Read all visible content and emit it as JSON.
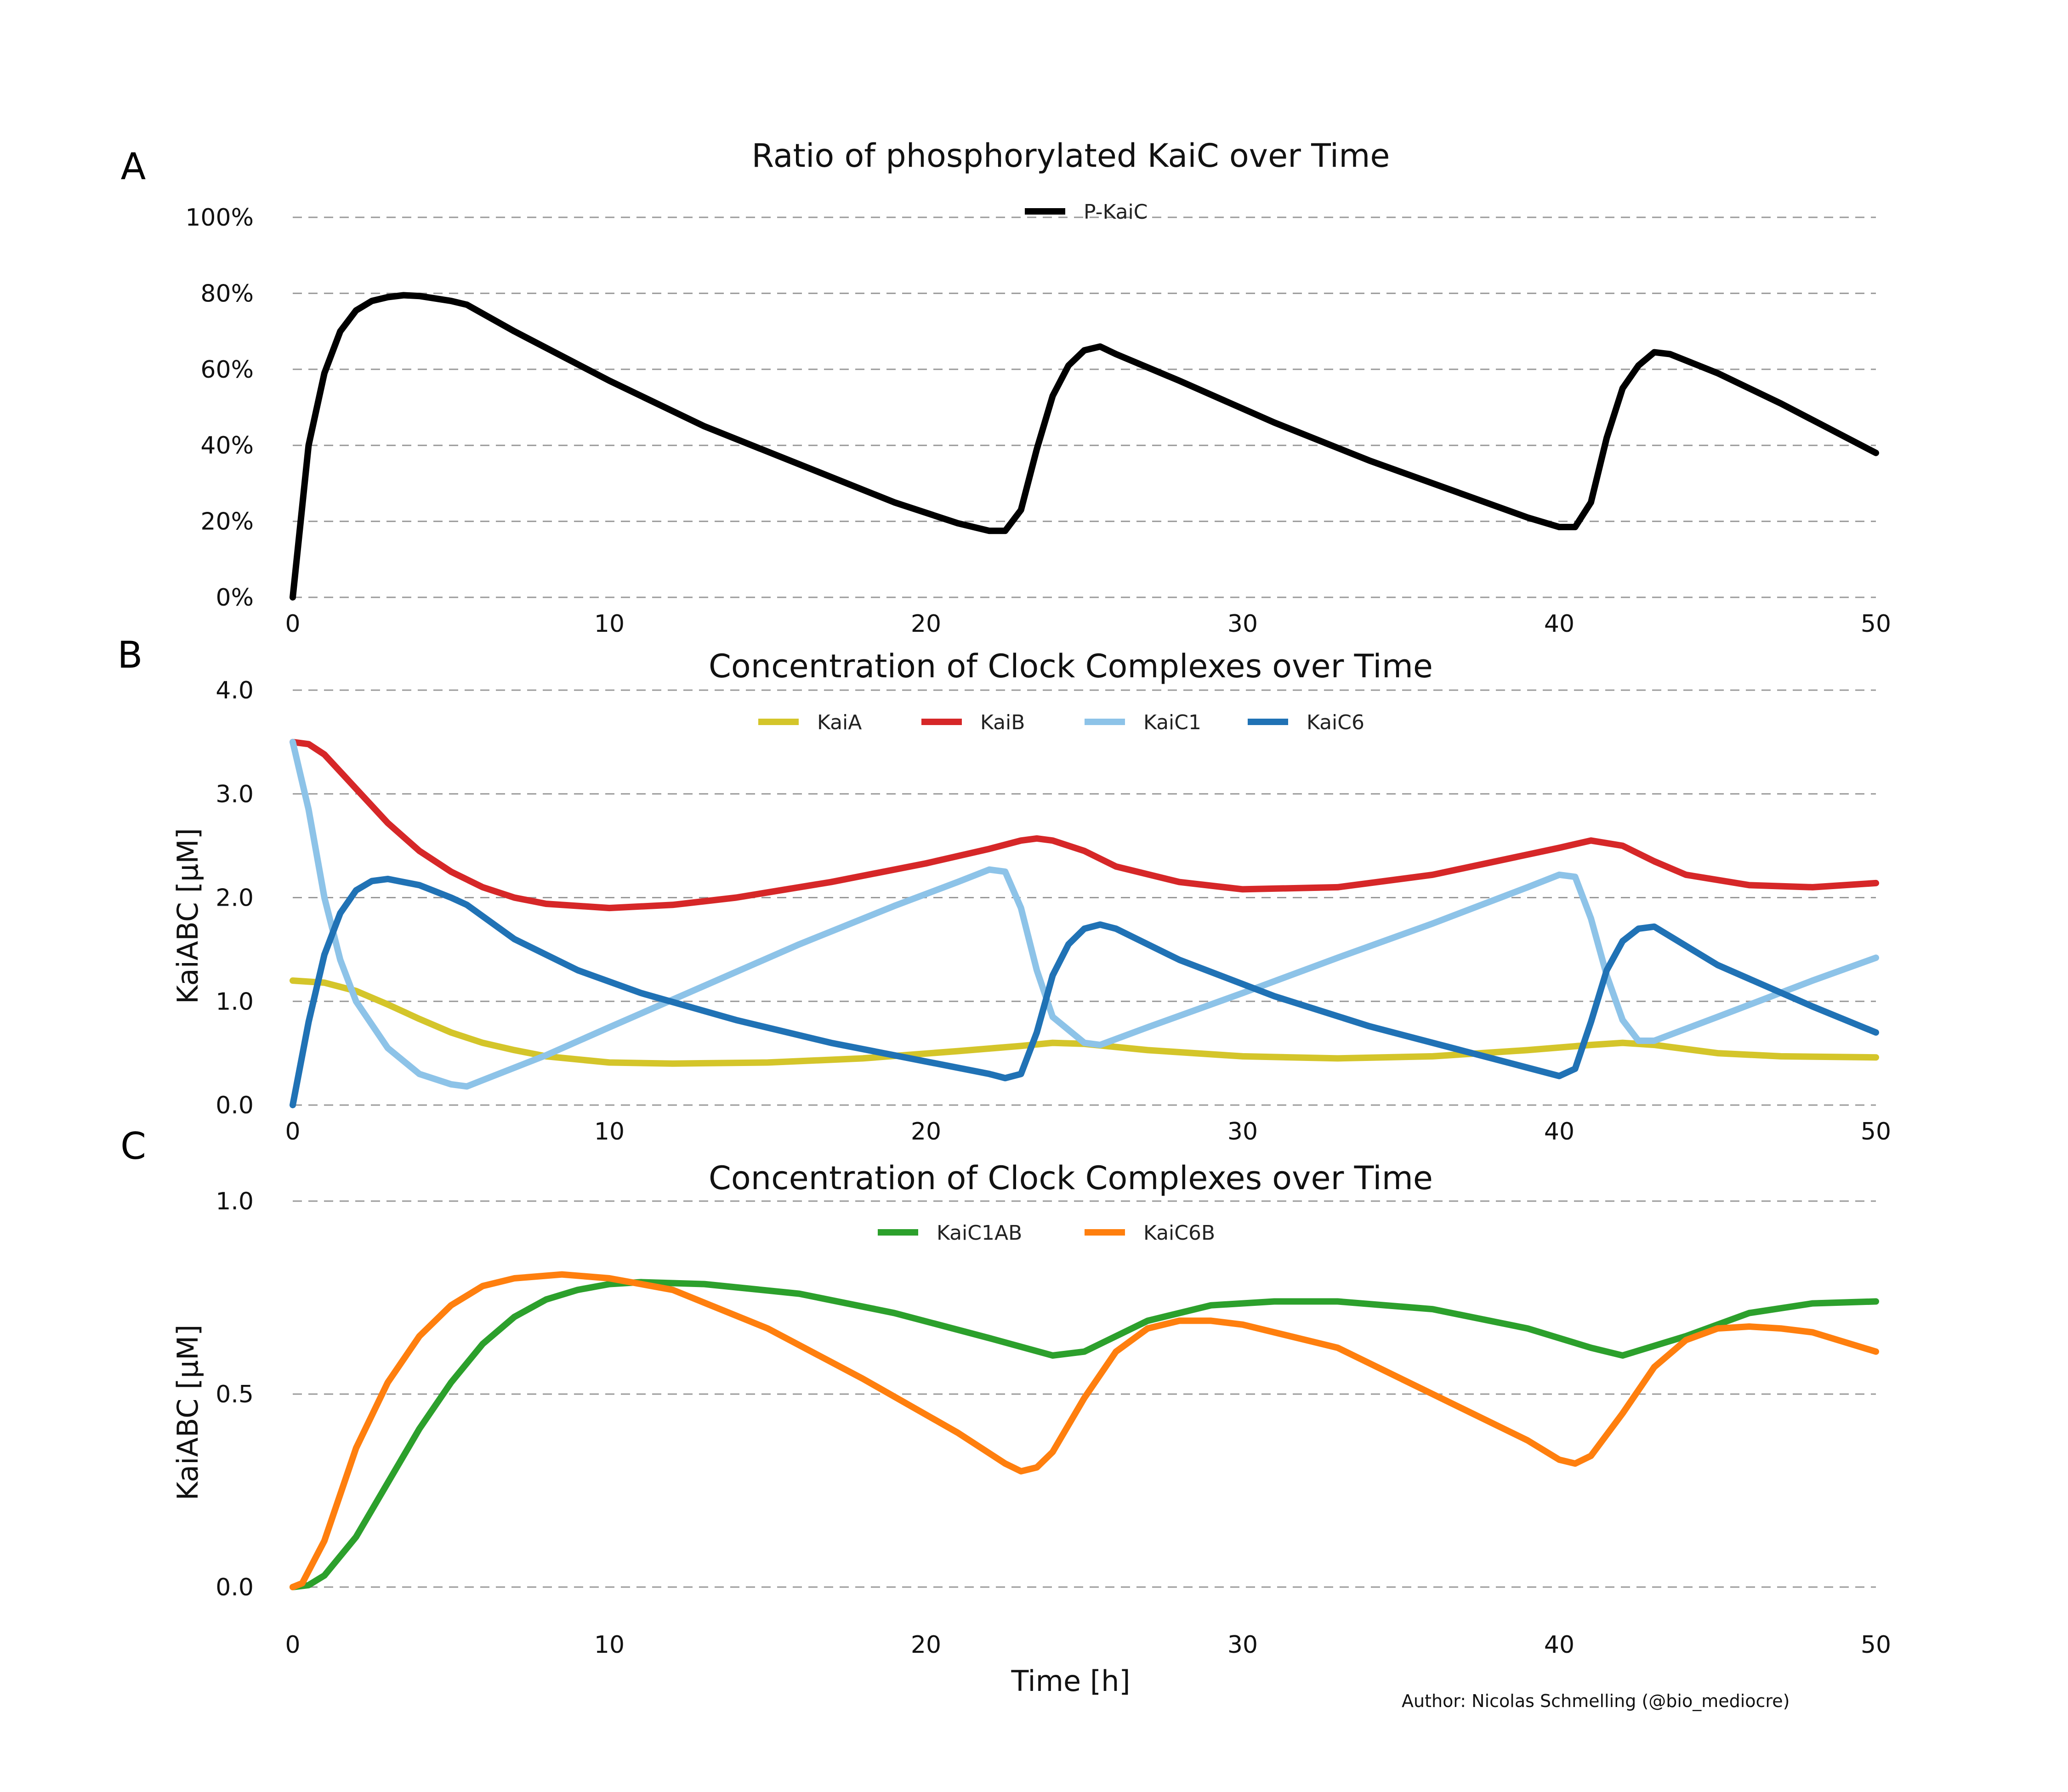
{
  "author_note": "Author: Nicolas Schmelling (@bio_mediocre)",
  "chart_data": [
    {
      "panel": "A",
      "type": "line",
      "title": "Ratio of phosphorylated KaiC over Time",
      "xlabel": "",
      "ylabel": "",
      "xlim": [
        0,
        50
      ],
      "ylim": [
        0,
        100
      ],
      "xticks": [
        0,
        10,
        20,
        30,
        40,
        50
      ],
      "xtick_labels": [
        "0",
        "10",
        "20",
        "30",
        "40",
        "50"
      ],
      "yticks": [
        0,
        20,
        40,
        60,
        80,
        100
      ],
      "ytick_labels": [
        "0%",
        "20%",
        "40%",
        "60%",
        "80%",
        "100%"
      ],
      "grid": "horizontal dashed",
      "legend_position": "top-center",
      "series": [
        {
          "name": "P-KaiC",
          "color": "#000000",
          "x": [
            0,
            0.5,
            1,
            1.5,
            2,
            2.5,
            3,
            3.5,
            4,
            5,
            5.5,
            7,
            10,
            13,
            16,
            19,
            21,
            22,
            22.5,
            23,
            23.5,
            24,
            24.5,
            25,
            25.5,
            26,
            28,
            31,
            34,
            37,
            39,
            40,
            40.5,
            41,
            41.5,
            42,
            42.5,
            43,
            43.5,
            45,
            47,
            50
          ],
          "y": [
            0,
            40,
            59,
            70,
            75.5,
            78,
            79,
            79.5,
            79.3,
            78,
            77,
            70,
            57,
            45,
            35,
            25,
            19.5,
            17.5,
            17.5,
            23,
            39,
            53,
            61,
            65,
            66,
            64,
            57,
            46,
            36,
            27,
            21,
            18.5,
            18.5,
            25,
            42,
            55,
            61,
            64.5,
            64,
            59,
            51,
            38
          ]
        }
      ]
    },
    {
      "panel": "B",
      "type": "line",
      "title": "Concentration of Clock Complexes over Time",
      "xlabel": "",
      "ylabel": "KaiABC [μM]",
      "xlim": [
        0,
        50
      ],
      "ylim": [
        0,
        4
      ],
      "xticks": [
        0,
        10,
        20,
        30,
        40,
        50
      ],
      "xtick_labels": [
        "0",
        "10",
        "20",
        "30",
        "40",
        "50"
      ],
      "yticks": [
        0,
        1,
        2,
        3,
        4
      ],
      "ytick_labels": [
        "0.0",
        "1.0",
        "2.0",
        "3.0",
        "4.0"
      ],
      "grid": "horizontal dashed",
      "legend_position": "top-center",
      "series": [
        {
          "name": "KaiA",
          "color": "#d4c52a",
          "x": [
            0,
            1,
            2,
            3,
            4,
            5,
            6,
            7,
            8,
            10,
            12,
            15,
            18,
            21,
            23,
            24,
            25,
            27,
            30,
            33,
            36,
            39,
            41,
            42,
            43,
            45,
            47,
            50
          ],
          "y": [
            1.2,
            1.18,
            1.1,
            0.97,
            0.83,
            0.7,
            0.6,
            0.53,
            0.47,
            0.41,
            0.4,
            0.41,
            0.45,
            0.52,
            0.57,
            0.6,
            0.59,
            0.53,
            0.47,
            0.45,
            0.47,
            0.53,
            0.58,
            0.6,
            0.58,
            0.5,
            0.47,
            0.46
          ]
        },
        {
          "name": "KaiB",
          "color": "#d62728",
          "x": [
            0,
            0.5,
            1,
            2,
            3,
            4,
            5,
            6,
            7,
            8,
            10,
            12,
            14,
            17,
            20,
            22,
            23,
            23.5,
            24,
            25,
            26,
            28,
            30,
            33,
            36,
            38,
            40,
            41,
            42,
            43,
            44,
            46,
            48,
            50
          ],
          "y": [
            3.5,
            3.48,
            3.38,
            3.05,
            2.72,
            2.45,
            2.25,
            2.1,
            2.0,
            1.94,
            1.9,
            1.93,
            2.0,
            2.15,
            2.33,
            2.47,
            2.55,
            2.57,
            2.55,
            2.45,
            2.3,
            2.15,
            2.08,
            2.1,
            2.22,
            2.35,
            2.48,
            2.55,
            2.5,
            2.35,
            2.22,
            2.12,
            2.1,
            2.14
          ]
        },
        {
          "name": "KaiC1",
          "color": "#8dc3e8",
          "x": [
            0,
            0.5,
            1,
            1.5,
            2,
            3,
            4,
            5,
            5.5,
            6,
            8,
            10,
            13,
            16,
            19,
            21,
            22,
            22.5,
            23,
            23.5,
            24,
            25,
            25.5,
            27,
            30,
            33,
            36,
            39,
            40,
            40.5,
            41,
            41.5,
            42,
            42.5,
            43,
            45,
            48,
            50
          ],
          "y": [
            3.5,
            2.85,
            2.0,
            1.4,
            1.0,
            0.55,
            0.3,
            0.2,
            0.18,
            0.24,
            0.48,
            0.75,
            1.15,
            1.55,
            1.92,
            2.15,
            2.27,
            2.25,
            1.9,
            1.3,
            0.85,
            0.6,
            0.58,
            0.75,
            1.08,
            1.42,
            1.75,
            2.1,
            2.22,
            2.2,
            1.8,
            1.25,
            0.82,
            0.62,
            0.62,
            0.85,
            1.2,
            1.42
          ]
        },
        {
          "name": "KaiC6",
          "color": "#2072b5",
          "x": [
            0,
            0.5,
            1,
            1.5,
            2,
            2.5,
            3,
            4,
            5,
            5.5,
            7,
            9,
            11,
            14,
            17,
            20,
            22,
            22.5,
            23,
            23.5,
            24,
            24.5,
            25,
            25.5,
            26,
            28,
            31,
            34,
            37,
            39,
            40,
            40.5,
            41,
            41.5,
            42,
            42.5,
            43,
            45,
            48,
            50
          ],
          "y": [
            0,
            0.8,
            1.45,
            1.85,
            2.07,
            2.16,
            2.18,
            2.12,
            2.0,
            1.93,
            1.6,
            1.3,
            1.08,
            0.82,
            0.6,
            0.42,
            0.3,
            0.26,
            0.3,
            0.7,
            1.25,
            1.55,
            1.7,
            1.74,
            1.7,
            1.4,
            1.05,
            0.76,
            0.52,
            0.36,
            0.28,
            0.35,
            0.8,
            1.3,
            1.58,
            1.7,
            1.72,
            1.35,
            0.95,
            0.7
          ]
        }
      ]
    },
    {
      "panel": "C",
      "type": "line",
      "title": "Concentration of Clock Complexes over Time",
      "xlabel": "Time [h]",
      "ylabel": "KaiABC [μM]",
      "xlim": [
        0,
        50
      ],
      "ylim": [
        0,
        1.0
      ],
      "xticks": [
        0,
        10,
        20,
        30,
        40,
        50
      ],
      "xtick_labels": [
        "0",
        "10",
        "20",
        "30",
        "40",
        "50"
      ],
      "yticks": [
        0,
        0.5,
        1.0
      ],
      "ytick_labels": [
        "0.0",
        "0.5",
        "1.0"
      ],
      "grid": "horizontal dashed",
      "legend_position": "top-center",
      "series": [
        {
          "name": "KaiC1AB",
          "color": "#2ca02c",
          "x": [
            0,
            0.5,
            1,
            2,
            3,
            4,
            5,
            6,
            7,
            8,
            9,
            10,
            11,
            13,
            16,
            19,
            22,
            24,
            25,
            27,
            29,
            31,
            33,
            36,
            39,
            41,
            42,
            44,
            46,
            48,
            50
          ],
          "y": [
            0,
            0.005,
            0.03,
            0.13,
            0.27,
            0.41,
            0.53,
            0.63,
            0.7,
            0.745,
            0.77,
            0.785,
            0.79,
            0.785,
            0.76,
            0.71,
            0.645,
            0.6,
            0.61,
            0.69,
            0.73,
            0.74,
            0.74,
            0.72,
            0.67,
            0.62,
            0.6,
            0.65,
            0.71,
            0.735,
            0.74
          ]
        },
        {
          "name": "KaiC6B",
          "color": "#ff7f0e",
          "x": [
            0,
            0.3,
            1,
            2,
            3,
            4,
            5,
            6,
            7,
            8.5,
            10,
            12,
            15,
            18,
            21,
            22.5,
            23,
            23.5,
            24,
            25,
            26,
            27,
            28,
            29,
            30,
            33,
            36,
            39,
            40,
            40.5,
            41,
            42,
            43,
            44,
            45,
            46,
            47,
            48,
            50
          ],
          "y": [
            0,
            0.01,
            0.12,
            0.36,
            0.53,
            0.65,
            0.73,
            0.78,
            0.8,
            0.81,
            0.8,
            0.77,
            0.67,
            0.54,
            0.4,
            0.32,
            0.3,
            0.31,
            0.35,
            0.49,
            0.61,
            0.67,
            0.69,
            0.69,
            0.68,
            0.62,
            0.5,
            0.38,
            0.33,
            0.32,
            0.34,
            0.45,
            0.57,
            0.64,
            0.67,
            0.675,
            0.67,
            0.66,
            0.61
          ]
        }
      ]
    }
  ]
}
